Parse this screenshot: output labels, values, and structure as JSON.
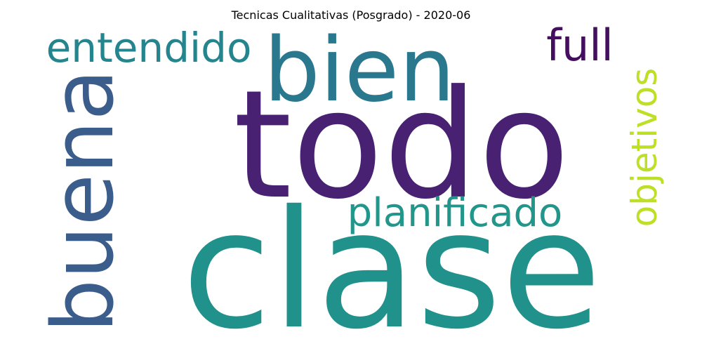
{
  "title": "Tecnicas Cualitativas (Posgrado) - 2020-06",
  "words": [
    {
      "text": "todo",
      "color": "#482173"
    },
    {
      "text": "clase",
      "color": "#21918c"
    },
    {
      "text": "bien",
      "color": "#2a788e"
    },
    {
      "text": "buena",
      "color": "#3b5d8c"
    },
    {
      "text": "entendido",
      "color": "#25858e"
    },
    {
      "text": "full",
      "color": "#440f5f"
    },
    {
      "text": "planificado",
      "color": "#23968b"
    },
    {
      "text": "objetivos",
      "color": "#bddf26"
    }
  ]
}
